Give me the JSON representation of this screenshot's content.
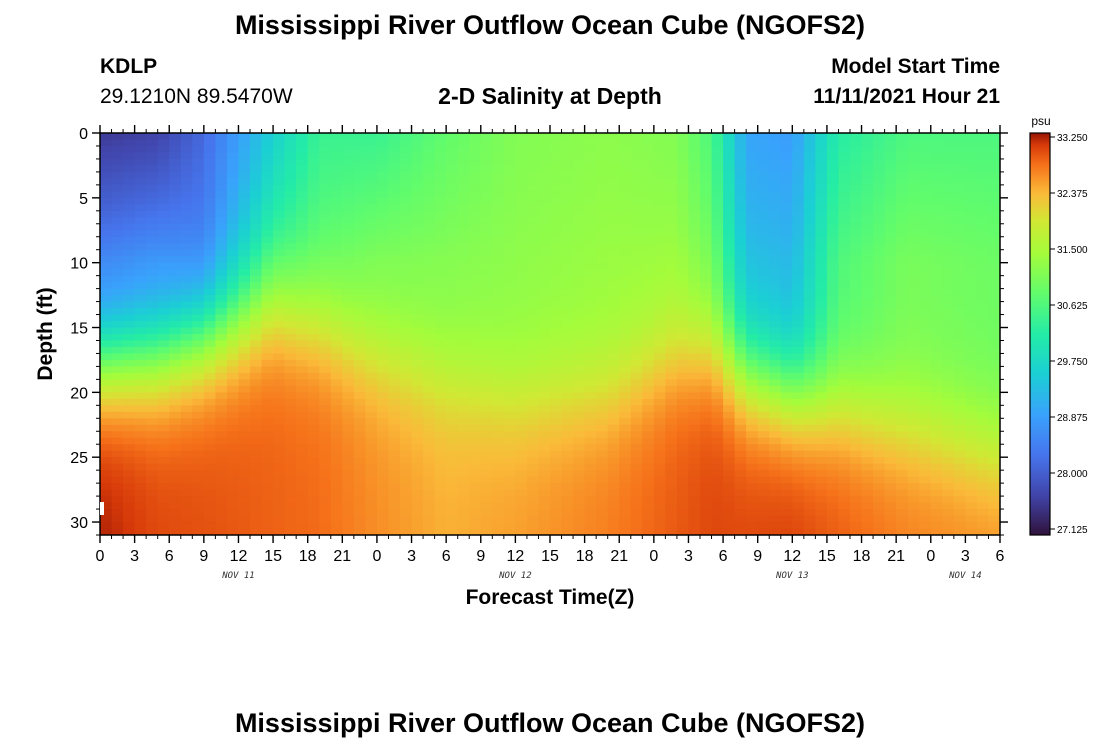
{
  "header": {
    "title": "Mississippi River Outflow Ocean Cube (NGOFS2)",
    "station_id": "KDLP",
    "station_coords": "29.1210N  89.5470W",
    "subtitle": "2-D Salinity at Depth",
    "model_start_label": "Model Start Time",
    "model_start_value": "11/11/2021 Hour 21"
  },
  "footer": {
    "title": "Mississippi River Outflow Ocean Cube (NGOFS2)"
  },
  "chart_data": {
    "type": "heatmap",
    "title": "2-D Salinity at Depth",
    "xlabel": "Forecast Time(Z)",
    "ylabel": "Depth (ft)",
    "x_range_hours": [
      0,
      78
    ],
    "x_tick_labels": [
      "0",
      "3",
      "6",
      "9",
      "12",
      "15",
      "18",
      "21",
      "0",
      "3",
      "6",
      "9",
      "12",
      "15",
      "18",
      "21",
      "0",
      "3",
      "6",
      "9",
      "12",
      "15",
      "18",
      "21",
      "0",
      "3",
      "6"
    ],
    "day_labels": [
      {
        "label": "NOV 11",
        "hour": 12
      },
      {
        "label": "NOV 12",
        "hour": 36
      },
      {
        "label": "NOV 13",
        "hour": 60
      },
      {
        "label": "NOV 14",
        "hour": 75
      }
    ],
    "y_range": [
      0,
      31
    ],
    "y_tick_labels": [
      "0",
      "5",
      "10",
      "15",
      "20",
      "25",
      "30"
    ],
    "colorbar": {
      "unit": "psu",
      "min": 27.125,
      "max": 33.25,
      "tick_labels": [
        "33.250",
        "32.375",
        "31.500",
        "30.625",
        "29.750",
        "28.875",
        "28.000",
        "27.125"
      ]
    },
    "profile_keys": [
      {
        "hour": 0,
        "surface": 27.6,
        "sub": 28.4,
        "halocline_ft": 17.5,
        "deep": 33.2
      },
      {
        "hour": 5,
        "surface": 27.7,
        "sub": 28.6,
        "halocline_ft": 17.0,
        "deep": 33.0
      },
      {
        "hour": 9,
        "surface": 28.2,
        "sub": 28.4,
        "halocline_ft": 15.5,
        "deep": 32.95
      },
      {
        "hour": 15,
        "surface": 29.6,
        "sub": 30.2,
        "halocline_ft": 13.0,
        "deep": 32.85
      },
      {
        "hour": 19,
        "surface": 30.4,
        "sub": 30.7,
        "halocline_ft": 14.5,
        "deep": 32.8
      },
      {
        "hour": 24,
        "surface": 30.4,
        "sub": 31.0,
        "halocline_ft": 17.0,
        "deep": 32.6
      },
      {
        "hour": 30,
        "surface": 30.8,
        "sub": 31.1,
        "halocline_ft": 19.0,
        "deep": 32.4
      },
      {
        "hour": 36,
        "surface": 31.1,
        "sub": 31.2,
        "halocline_ft": 20.5,
        "deep": 32.5
      },
      {
        "hour": 44,
        "surface": 31.2,
        "sub": 31.3,
        "halocline_ft": 20.0,
        "deep": 32.7
      },
      {
        "hour": 50,
        "surface": 31.1,
        "sub": 31.3,
        "halocline_ft": 17.0,
        "deep": 32.9
      },
      {
        "hour": 53,
        "surface": 30.6,
        "sub": 30.9,
        "halocline_ft": 16.5,
        "deep": 33.0
      },
      {
        "hour": 56,
        "surface": 29.0,
        "sub": 29.3,
        "halocline_ft": 18.5,
        "deep": 33.0
      },
      {
        "hour": 60,
        "surface": 28.9,
        "sub": 29.2,
        "halocline_ft": 20.0,
        "deep": 33.05
      },
      {
        "hour": 64,
        "surface": 30.2,
        "sub": 30.6,
        "halocline_ft": 21.0,
        "deep": 32.9
      },
      {
        "hour": 70,
        "surface": 30.6,
        "sub": 31.0,
        "halocline_ft": 22.5,
        "deep": 32.7
      },
      {
        "hour": 78,
        "surface": 30.6,
        "sub": 30.9,
        "halocline_ft": 24.5,
        "deep": 32.6
      }
    ]
  }
}
